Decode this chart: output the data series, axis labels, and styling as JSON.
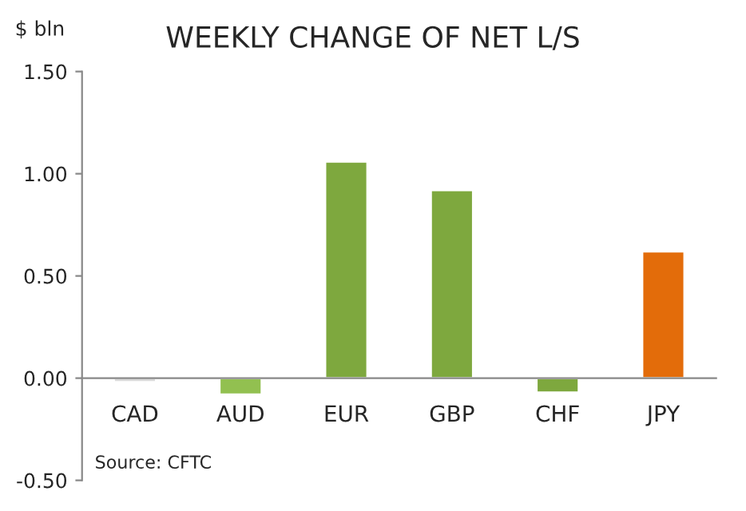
{
  "chart_data": {
    "type": "bar",
    "title": "WEEKLY CHANGE OF NET L/S",
    "ylabel": "$ bln",
    "categories": [
      "CAD",
      "AUD",
      "EUR",
      "GBP",
      "CHF",
      "JPY"
    ],
    "values": [
      -0.02,
      -0.08,
      1.06,
      0.92,
      -0.07,
      0.62
    ],
    "colors": [
      "#d9d9d9",
      "#92c050",
      "#7ea83e",
      "#7ea83e",
      "#7ea83e",
      "#e36c0a"
    ],
    "ylim": [
      -0.5,
      1.5
    ],
    "yticks": [
      {
        "value": -0.5,
        "label": "-0.50"
      },
      {
        "value": 0,
        "label": "0.00"
      },
      {
        "value": 0.5,
        "label": "0.50"
      },
      {
        "value": 1.0,
        "label": "1.00"
      },
      {
        "value": 1.5,
        "label": "1.50"
      }
    ],
    "grid": false,
    "legend": false,
    "annotations": [
      "Source: CFTC"
    ]
  }
}
